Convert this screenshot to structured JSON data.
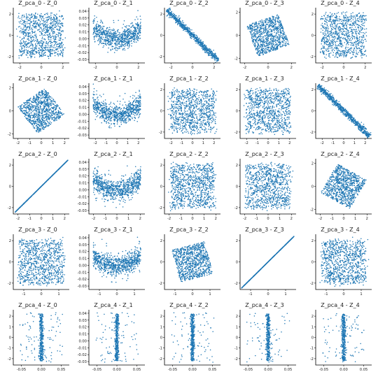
{
  "figure": {
    "point_color": "#1f77b4",
    "axis_color": "#000000",
    "background": "#ffffff"
  },
  "chart_data": {
    "type": "scatter",
    "grid": false,
    "rows": 5,
    "cols": 5,
    "panels": [
      {
        "title": "Z_pca_0 - Z_0",
        "shape": "blob",
        "xlim": [
          -2.6,
          2.6
        ],
        "ylim": [
          -2.6,
          2.6
        ],
        "xticks": [
          "-2",
          "0",
          "2"
        ],
        "yticks": [
          "-2",
          "0",
          "2"
        ],
        "n": 900
      },
      {
        "title": "Z_pca_0 - Z_1",
        "shape": "uwide",
        "xlim": [
          -2.6,
          2.6
        ],
        "ylim": [
          -0.035,
          0.045
        ],
        "xticks": [
          "-2",
          "0",
          "2"
        ],
        "yticks": [
          "-0.03",
          "-0.02",
          "-0.01",
          "0.00",
          "0.01",
          "0.02",
          "0.03",
          "0.04"
        ],
        "n": 800
      },
      {
        "title": "Z_pca_0 - Z_2",
        "shape": "negline",
        "xlim": [
          -2.6,
          2.6
        ],
        "ylim": [
          -2.6,
          2.6
        ],
        "xticks": [
          "-2",
          "0",
          "2"
        ],
        "yticks": [
          "-2",
          "0",
          "2"
        ],
        "n": 700
      },
      {
        "title": "Z_pca_0 - Z_3",
        "shape": "rot",
        "angle": 20,
        "xlim": [
          -2.4,
          2.4
        ],
        "ylim": [
          -2.4,
          2.4
        ],
        "xticks": [
          "-2",
          "0",
          "2"
        ],
        "yticks": [
          "-2",
          "0",
          "2"
        ],
        "n": 900
      },
      {
        "title": "Z_pca_0 - Z_4",
        "shape": "blob",
        "xlim": [
          -2.6,
          2.6
        ],
        "ylim": [
          -2.6,
          2.6
        ],
        "xticks": [
          "-2",
          "0",
          "2"
        ],
        "yticks": [
          "-2",
          "0",
          "2"
        ],
        "n": 900
      },
      {
        "title": "Z_pca_1 - Z_0",
        "shape": "rot",
        "angle": 35,
        "xlim": [
          -2.4,
          2.4
        ],
        "ylim": [
          -2.4,
          2.4
        ],
        "xticks": [
          "-2",
          "-1",
          "0",
          "1",
          "2"
        ],
        "yticks": [
          "-2",
          "0",
          "2"
        ],
        "n": 900
      },
      {
        "title": "Z_pca_1 - Z_1",
        "shape": "uwide",
        "xlim": [
          -2.6,
          2.6
        ],
        "ylim": [
          -0.035,
          0.045
        ],
        "xticks": [
          "-2",
          "-1",
          "0",
          "1",
          "2"
        ],
        "yticks": [
          "-0.03",
          "-0.02",
          "-0.01",
          "0.00",
          "0.01",
          "0.02",
          "0.03",
          "0.04"
        ],
        "n": 800
      },
      {
        "title": "Z_pca_1 - Z_2",
        "shape": "blob",
        "xlim": [
          -2.6,
          2.6
        ],
        "ylim": [
          -2.6,
          2.6
        ],
        "xticks": [
          "-2",
          "-1",
          "0",
          "1",
          "2"
        ],
        "yticks": [
          "-2",
          "0",
          "2"
        ],
        "n": 900
      },
      {
        "title": "Z_pca_1 - Z_3",
        "shape": "blob",
        "xlim": [
          -2.6,
          2.6
        ],
        "ylim": [
          -2.6,
          2.6
        ],
        "xticks": [
          "-2",
          "-1",
          "0",
          "1",
          "2"
        ],
        "yticks": [
          "-2",
          "0",
          "2"
        ],
        "n": 900
      },
      {
        "title": "Z_pca_1 - Z_4",
        "shape": "negline",
        "xlim": [
          -2.6,
          2.6
        ],
        "ylim": [
          -2.6,
          2.6
        ],
        "xticks": [
          "-2",
          "-1",
          "0",
          "1",
          "2"
        ],
        "yticks": [
          "-2",
          "0",
          "2"
        ],
        "n": 700
      },
      {
        "title": "Z_pca_2 - Z_0",
        "shape": "posline",
        "xlim": [
          -2.4,
          2.4
        ],
        "ylim": [
          -2.6,
          2.6
        ],
        "xticks": [
          "-2",
          "-1",
          "0",
          "1",
          "2"
        ],
        "yticks": [
          "-2",
          "0",
          "2"
        ],
        "n": 700
      },
      {
        "title": "Z_pca_2 - Z_1",
        "shape": "uwide",
        "xlim": [
          -2.4,
          2.4
        ],
        "ylim": [
          -0.035,
          0.045
        ],
        "xticks": [
          "-2",
          "-1",
          "0",
          "1",
          "2"
        ],
        "yticks": [
          "-0.03",
          "-0.02",
          "-0.01",
          "0.00",
          "0.01",
          "0.02",
          "0.03",
          "0.04"
        ],
        "n": 800
      },
      {
        "title": "Z_pca_2 - Z_2",
        "shape": "blob",
        "xlim": [
          -2.4,
          2.4
        ],
        "ylim": [
          -2.6,
          2.6
        ],
        "xticks": [
          "-2",
          "-1",
          "0",
          "1",
          "2"
        ],
        "yticks": [
          "-2",
          "0",
          "2"
        ],
        "n": 900
      },
      {
        "title": "Z_pca_2 - Z_3",
        "shape": "blob",
        "xlim": [
          -2.4,
          2.4
        ],
        "ylim": [
          -2.6,
          2.6
        ],
        "xticks": [
          "-2",
          "-1",
          "0",
          "1",
          "2"
        ],
        "yticks": [
          "-2",
          "0",
          "2"
        ],
        "n": 900
      },
      {
        "title": "Z_pca_2 - Z_4",
        "shape": "rot",
        "angle": -30,
        "xlim": [
          -2.4,
          2.4
        ],
        "ylim": [
          -2.4,
          2.4
        ],
        "xticks": [
          "-2",
          "-1",
          "0",
          "1",
          "2"
        ],
        "yticks": [
          "-2",
          "0",
          "2"
        ],
        "n": 900
      },
      {
        "title": "Z_pca_3 - Z_0",
        "shape": "blob",
        "xlim": [
          -1.6,
          1.6
        ],
        "ylim": [
          -2.6,
          2.6
        ],
        "xticks": [
          "-1",
          "0",
          "1"
        ],
        "yticks": [
          "-2",
          "0",
          "2"
        ],
        "n": 900
      },
      {
        "title": "Z_pca_3 - Z_1",
        "shape": "uwide",
        "xlim": [
          -1.6,
          1.6
        ],
        "ylim": [
          -0.035,
          0.045
        ],
        "xticks": [
          "-1",
          "0",
          "1"
        ],
        "yticks": [
          "-0.03",
          "-0.02",
          "-0.01",
          "0.00",
          "0.01",
          "0.02",
          "0.03",
          "0.04"
        ],
        "n": 800
      },
      {
        "title": "Z_pca_3 - Z_2",
        "shape": "rot",
        "angle": 15,
        "xlim": [
          -1.6,
          1.6
        ],
        "ylim": [
          -2.6,
          2.6
        ],
        "xticks": [
          "-1",
          "0",
          "1"
        ],
        "yticks": [
          "-2",
          "0",
          "2"
        ],
        "n": 900
      },
      {
        "title": "Z_pca_3 - Z_3",
        "shape": "posline",
        "xlim": [
          -1.6,
          1.6
        ],
        "ylim": [
          -2.6,
          2.6
        ],
        "xticks": [
          "-1",
          "0",
          "1"
        ],
        "yticks": [
          "-2",
          "0",
          "2"
        ],
        "n": 700
      },
      {
        "title": "Z_pca_3 - Z_4",
        "shape": "blob",
        "xlim": [
          -1.6,
          1.6
        ],
        "ylim": [
          -2.6,
          2.6
        ],
        "xticks": [
          "-1",
          "0",
          "1"
        ],
        "yticks": [
          "-2",
          "0",
          "2"
        ],
        "n": 900
      },
      {
        "title": "Z_pca_4 - Z_0",
        "shape": "vert",
        "xlim": [
          -0.07,
          0.07
        ],
        "ylim": [
          -2.6,
          2.6
        ],
        "xticks": [
          "-0.05",
          "0.00",
          "0.05"
        ],
        "yticks": [
          "-2",
          "-1",
          "0",
          "1",
          "2"
        ],
        "n": 450
      },
      {
        "title": "Z_pca_4 - Z_1",
        "shape": "vert",
        "xlim": [
          -0.07,
          0.07
        ],
        "ylim": [
          -0.035,
          0.045
        ],
        "xticks": [
          "-0.05",
          "0.00",
          "0.05"
        ],
        "yticks": [
          "-0.03",
          "-0.02",
          "-0.01",
          "0.00",
          "0.01",
          "0.02",
          "0.03",
          "0.04"
        ],
        "n": 450
      },
      {
        "title": "Z_pca_4 - Z_2",
        "shape": "vert",
        "xlim": [
          -0.07,
          0.07
        ],
        "ylim": [
          -2.6,
          2.6
        ],
        "xticks": [
          "-0.05",
          "0.00",
          "0.05"
        ],
        "yticks": [
          "-2",
          "-1",
          "0",
          "1",
          "2"
        ],
        "n": 450
      },
      {
        "title": "Z_pca_4 - Z_3",
        "shape": "vert",
        "xlim": [
          -0.07,
          0.07
        ],
        "ylim": [
          -2.6,
          2.6
        ],
        "xticks": [
          "-0.05",
          "0.00",
          "0.05"
        ],
        "yticks": [
          "-2",
          "-1",
          "0",
          "1",
          "2"
        ],
        "n": 450
      },
      {
        "title": "Z_pca_4 - Z_4",
        "shape": "vert",
        "xlim": [
          -0.07,
          0.07
        ],
        "ylim": [
          -2.6,
          2.6
        ],
        "xticks": [
          "-0.05",
          "0.00",
          "0.05"
        ],
        "yticks": [
          "-2",
          "-1",
          "0",
          "1",
          "2"
        ],
        "n": 450
      }
    ]
  }
}
